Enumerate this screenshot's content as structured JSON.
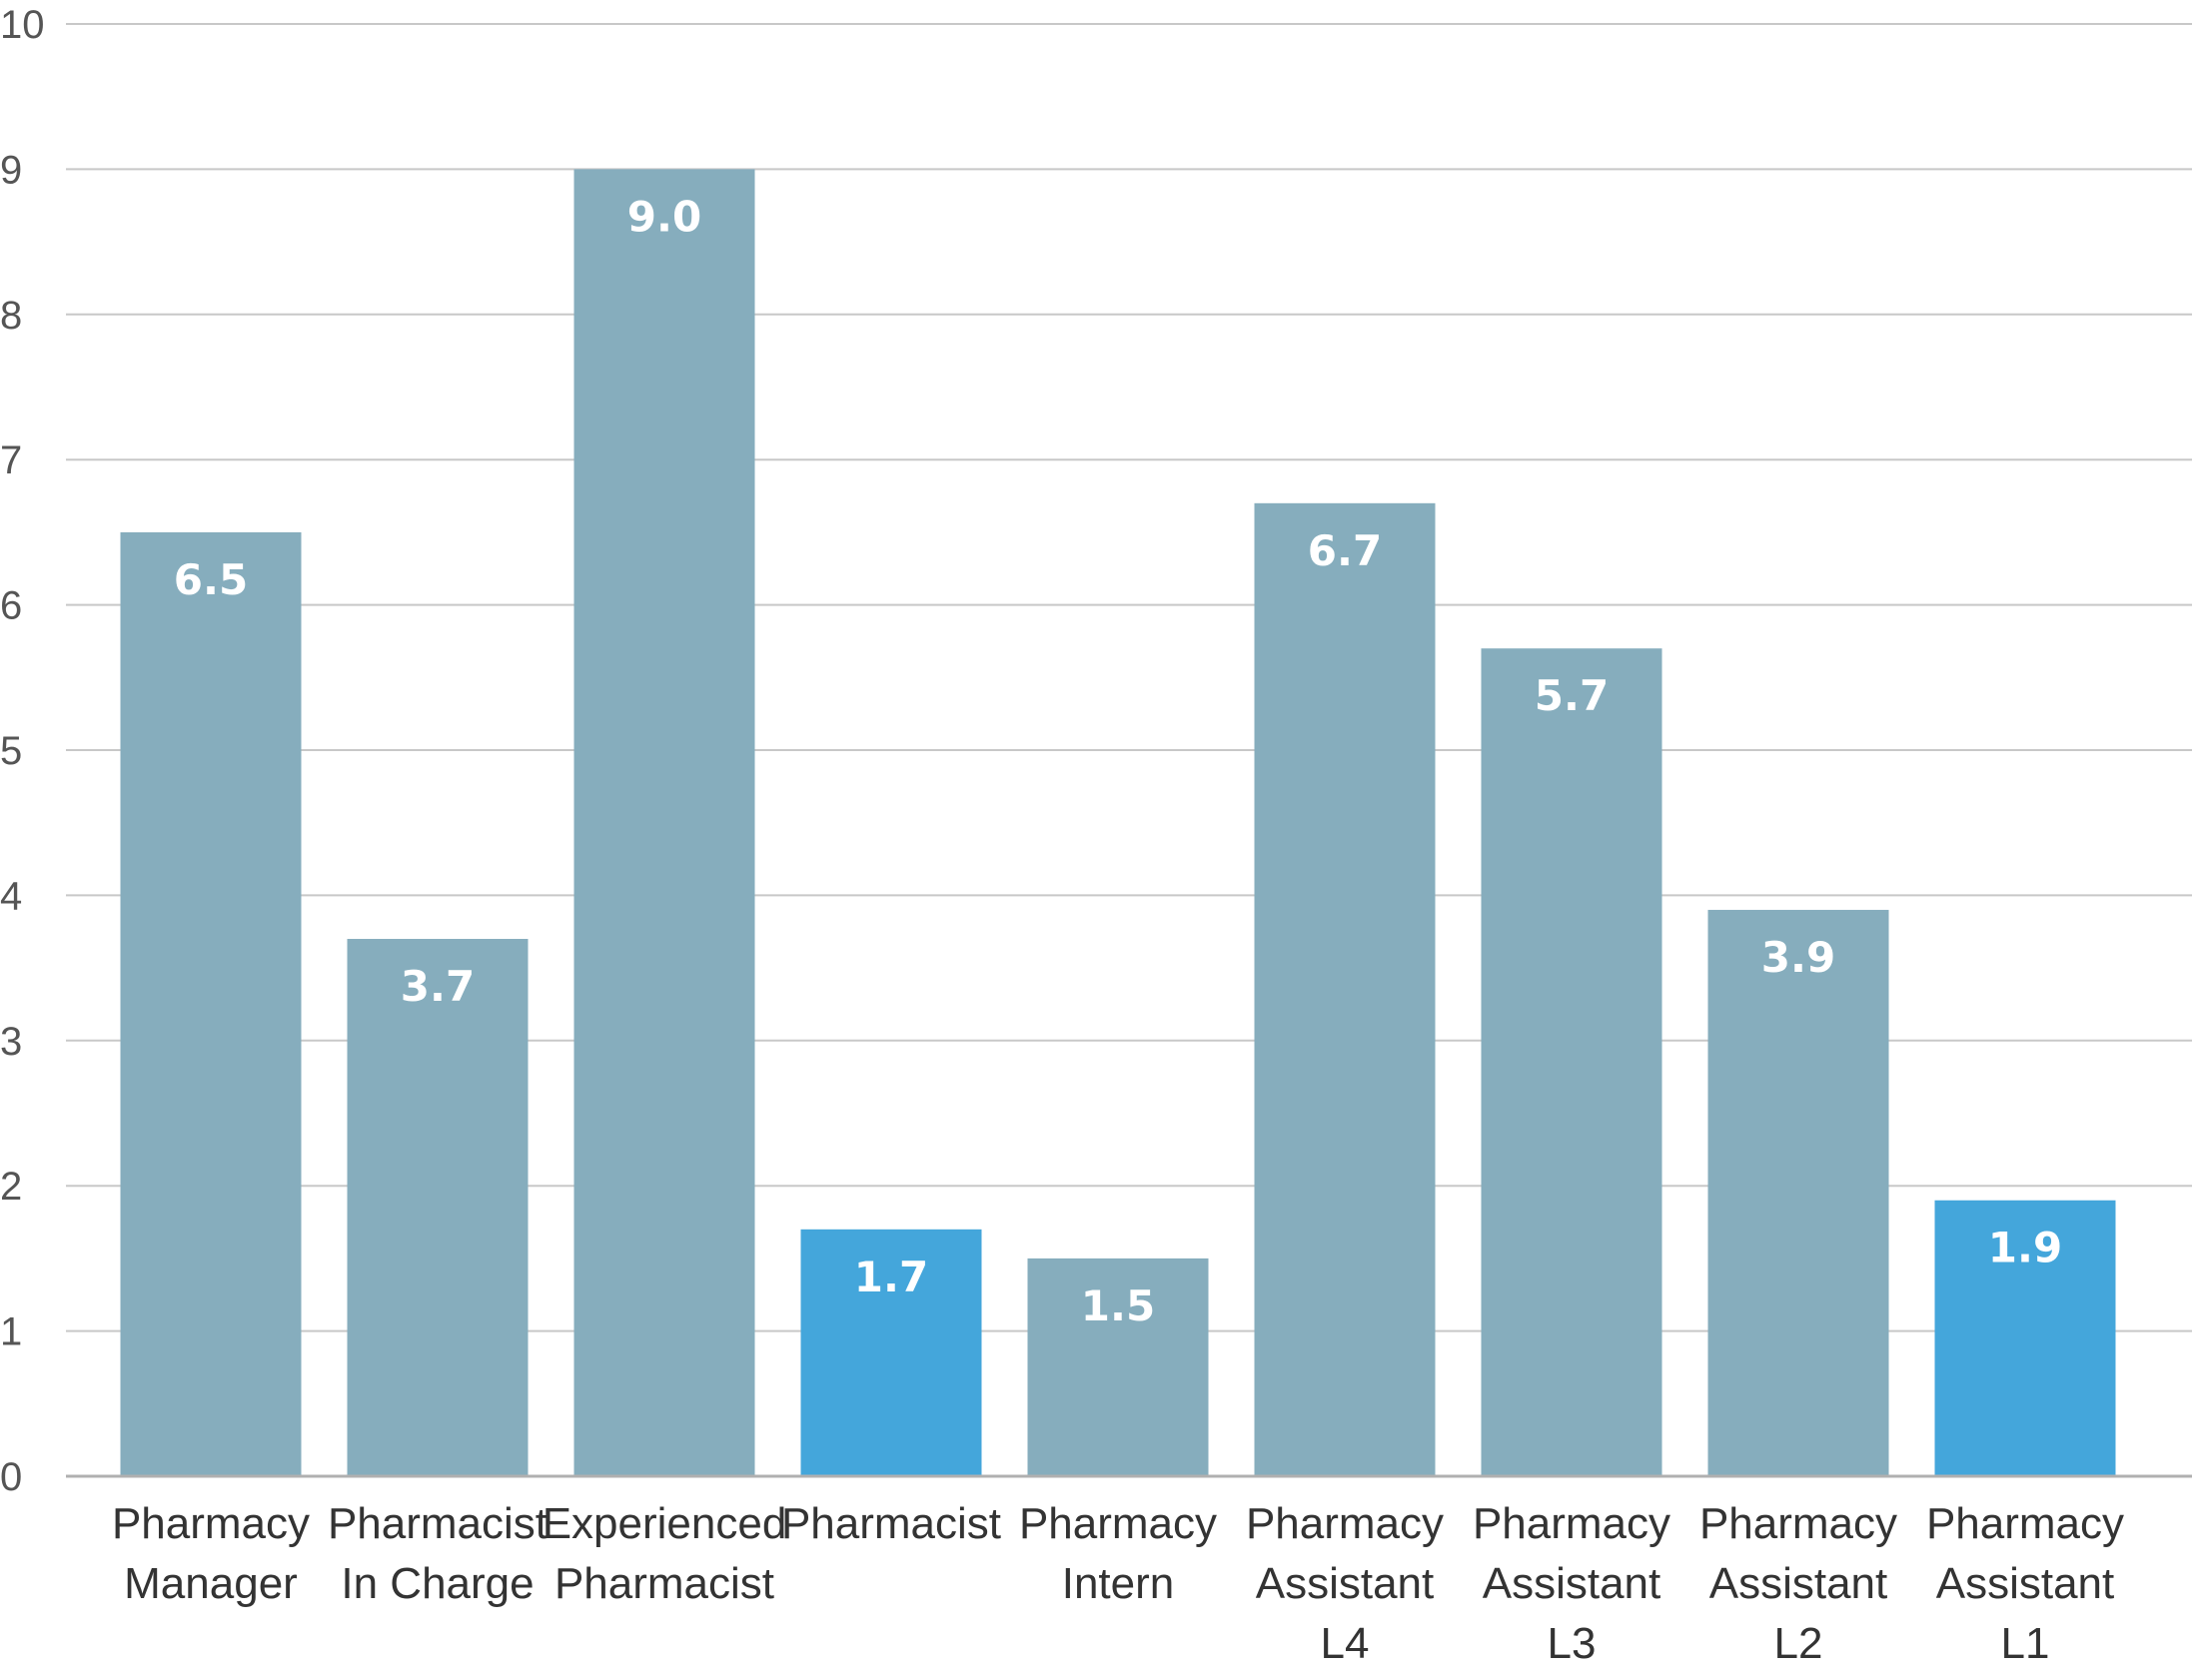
{
  "chart_data": {
    "type": "bar",
    "title": "",
    "xlabel": "",
    "ylabel": "",
    "ylim": [
      0,
      10
    ],
    "yticks": [
      0,
      1,
      2,
      3,
      4,
      5,
      6,
      7,
      8,
      9,
      10
    ],
    "grid": true,
    "categories": [
      [
        "Pharmacy",
        "Manager"
      ],
      [
        "Pharmacist",
        "In Charge"
      ],
      [
        "Experienced",
        "Pharmacist"
      ],
      [
        "Pharmacist"
      ],
      [
        "Pharmacy",
        "Intern"
      ],
      [
        "Pharmacy",
        "Assistant",
        "L4"
      ],
      [
        "Pharmacy",
        "Assistant",
        "L3"
      ],
      [
        "Pharmacy",
        "Assistant",
        "L2"
      ],
      [
        "Pharmacy",
        "Assistant",
        "L1"
      ]
    ],
    "values": [
      6.5,
      3.7,
      9.0,
      1.7,
      1.5,
      6.7,
      5.7,
      3.9,
      1.9
    ],
    "data_labels": [
      "6.5",
      "3.7",
      "9.0",
      "1.7",
      "1.5",
      "6.7",
      "5.7",
      "3.9",
      "1.9"
    ],
    "highlighted": [
      false,
      false,
      false,
      true,
      false,
      false,
      false,
      false,
      true
    ],
    "colors": {
      "bar": "#86adbd",
      "highlight": "#44a6db"
    }
  }
}
